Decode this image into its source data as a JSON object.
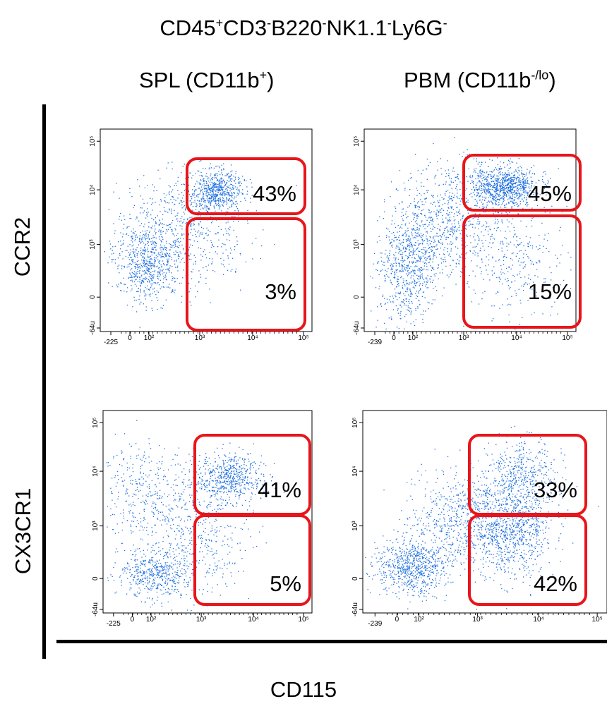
{
  "figure": {
    "title_base": "CD45",
    "title_parts": [
      {
        "text": "CD45",
        "sup": "+"
      },
      {
        "text": "CD3",
        "sup": "-"
      },
      {
        "text": "B220",
        "sup": "-"
      },
      {
        "text": "NK1.1",
        "sup": "-"
      },
      {
        "text": "Ly6G",
        "sup": "-"
      }
    ],
    "columns": [
      {
        "text": "SPL (CD11b",
        "sup": "+",
        "tail": ")"
      },
      {
        "text": "PBM (CD11b",
        "sup": "-/lo",
        "tail": ")"
      }
    ],
    "rows": [
      "CCR2",
      "CX3CR1"
    ],
    "x_label": "CD115",
    "gate_color": "#e8151b",
    "dot_color": "#1e6fe0"
  },
  "chart_data": [
    {
      "type": "scatter",
      "row": "CCR2",
      "column": "SPL (CD11b+)",
      "xlabel": "CD115",
      "ylabel": "CCR2",
      "x_ticks": [
        "-225",
        "0",
        "10²",
        "10³",
        "10⁴",
        "10⁵"
      ],
      "y_ticks": [
        "-64u",
        "0",
        "10³",
        "10⁴",
        "10⁵"
      ],
      "gates": [
        {
          "label": "43%",
          "value": 43
        },
        {
          "label": "3%",
          "value": 3
        }
      ]
    },
    {
      "type": "scatter",
      "row": "CCR2",
      "column": "PBM (CD11b-/lo)",
      "xlabel": "CD115",
      "ylabel": "CCR2",
      "x_ticks": [
        "-239",
        "0",
        "10²",
        "10³",
        "10⁴",
        "10⁵"
      ],
      "y_ticks": [
        "-64u",
        "0",
        "10³",
        "10⁴",
        "10⁵"
      ],
      "gates": [
        {
          "label": "45%",
          "value": 45
        },
        {
          "label": "15%",
          "value": 15
        }
      ]
    },
    {
      "type": "scatter",
      "row": "CX3CR1",
      "column": "SPL (CD11b+)",
      "xlabel": "CD115",
      "ylabel": "CX3CR1",
      "x_ticks": [
        "-225",
        "0",
        "10²",
        "10³",
        "10⁴",
        "10⁵"
      ],
      "y_ticks": [
        "-64u",
        "0",
        "10³",
        "10⁴",
        "10⁵"
      ],
      "gates": [
        {
          "label": "41%",
          "value": 41
        },
        {
          "label": "5%",
          "value": 5
        }
      ]
    },
    {
      "type": "scatter",
      "row": "CX3CR1",
      "column": "PBM (CD11b-/lo)",
      "xlabel": "CD115",
      "ylabel": "CX3CR1",
      "x_ticks": [
        "-239",
        "0",
        "10²",
        "10³",
        "10⁴",
        "10⁵"
      ],
      "y_ticks": [
        "-64u",
        "0",
        "10³",
        "10⁴",
        "10⁵"
      ],
      "gates": [
        {
          "label": "33%",
          "value": 33
        },
        {
          "label": "42%",
          "value": 42
        }
      ]
    }
  ]
}
